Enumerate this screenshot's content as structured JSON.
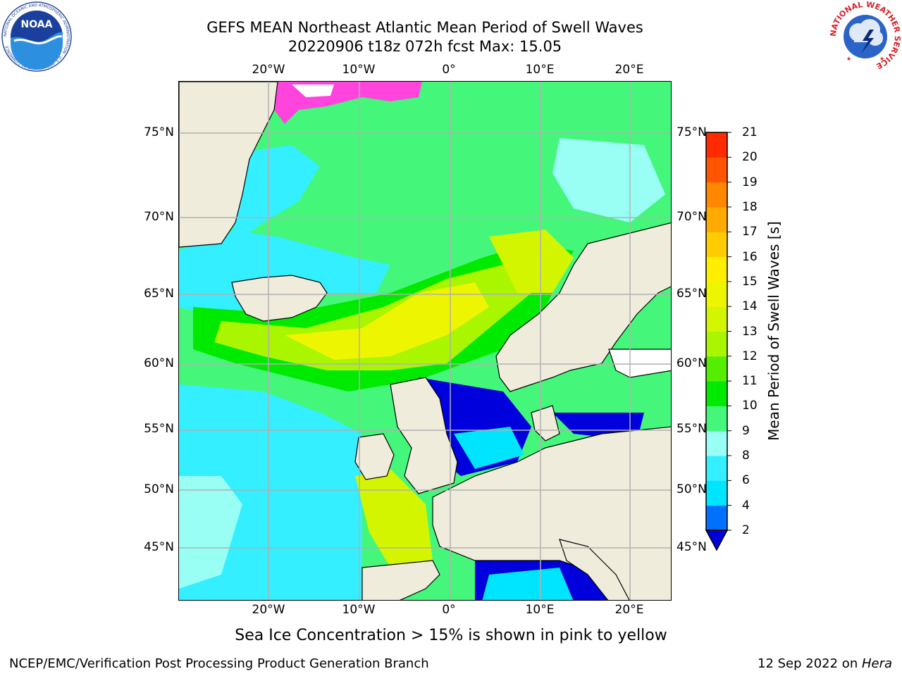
{
  "title": {
    "line1": "GEFS MEAN Northeast Atlantic Mean Period of Swell Waves",
    "line2": "20220906 t18z 072h fcst   Max: 15.05"
  },
  "logos": {
    "left": {
      "icon": "noaa-logo-icon",
      "text": "NOAA",
      "ring_text": "NATIONAL OCEANIC AND ATMOSPHERIC ADMINISTRATION · U.S. DEPARTMENT OF COMMERCE"
    },
    "right": {
      "icon": "national-weather-service-logo-icon",
      "ring_text": "NATIONAL WEATHER SERVICE"
    }
  },
  "map": {
    "longitude_labels": [
      "20°W",
      "10°W",
      "0°",
      "10°E",
      "20°E"
    ],
    "latitude_labels": [
      "75°N",
      "70°N",
      "65°N",
      "60°N",
      "55°N",
      "50°N",
      "45°N"
    ],
    "lon_range": [
      -30,
      25
    ],
    "lat_range": [
      41,
      78
    ],
    "gridlines": true,
    "colors": {
      "land": "#efecdc",
      "coast": "#000000",
      "grid": "#b0b0b0",
      "ice_pink": "#ff44dd",
      "ice_white": "#ffffff"
    }
  },
  "colorbar": {
    "title": "Mean Period of Swell Waves [s]",
    "tick_labels": [
      "2",
      "4",
      "6",
      "8",
      "9",
      "10",
      "11",
      "12",
      "13",
      "14",
      "15",
      "16",
      "17",
      "18",
      "19",
      "20",
      "21"
    ],
    "colors": [
      "#0070ff",
      "#00e5ff",
      "#33efff",
      "#99fff5",
      "#44f77a",
      "#00ea00",
      "#55ee00",
      "#aaf500",
      "#d4f500",
      "#eef500",
      "#ffee00",
      "#ffcc00",
      "#ffaa00",
      "#ff8800",
      "#ff5500",
      "#ff2a00"
    ],
    "under_color": "#0000dd",
    "extend": "min"
  },
  "note": "Sea Ice Concentration > 15% is shown in pink to yellow",
  "footer": {
    "left": "NCEP/EMC/Verification Post Processing Product Generation Branch",
    "right_date": "12 Sep 2022 on ",
    "right_host": "Hera"
  }
}
